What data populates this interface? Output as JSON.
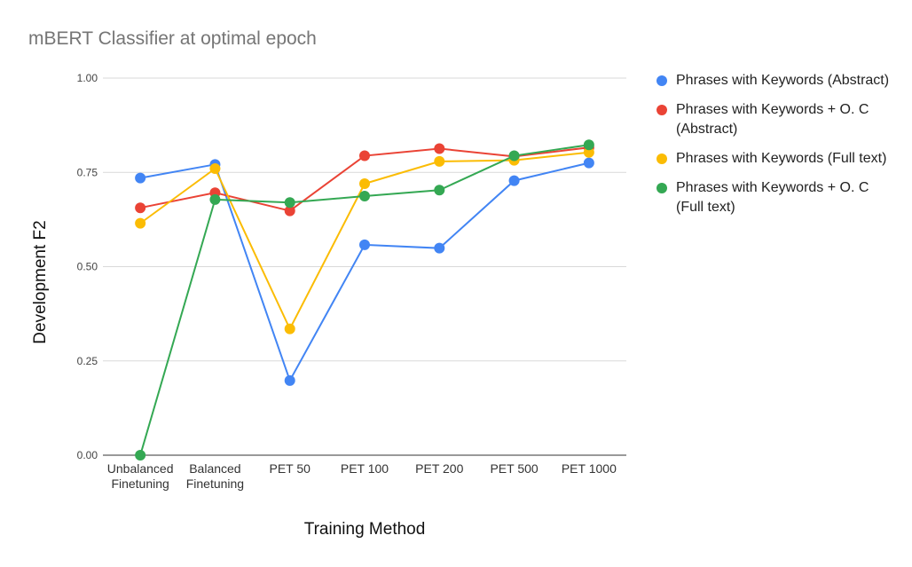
{
  "chart_data": {
    "type": "line",
    "title": "mBERT Classifier at optimal epoch",
    "xlabel": "Training Method",
    "ylabel": "Development F2",
    "categories": [
      "Unbalanced Finetuning",
      "Balanced Finetuning",
      "PET 50",
      "PET 100",
      "PET 200",
      "PET 500",
      "PET 1000"
    ],
    "category_lines": [
      [
        "Unbalanced",
        "Finetuning"
      ],
      [
        "Balanced",
        "Finetuning"
      ],
      [
        "PET 50"
      ],
      [
        "PET 100"
      ],
      [
        "PET 200"
      ],
      [
        "PET 500"
      ],
      [
        "PET 1000"
      ]
    ],
    "ylim": [
      0,
      1
    ],
    "yticks": [
      0,
      0.25,
      0.5,
      0.75,
      1
    ],
    "ytick_labels": [
      "0.00",
      "0.25",
      "0.50",
      "0.75",
      "1.00"
    ],
    "grid": true,
    "legend_position": "right",
    "series": [
      {
        "name": "Phrases with Keywords (Abstract)",
        "color": "#4285F4",
        "values": [
          0.735,
          0.771,
          0.198,
          0.558,
          0.549,
          0.728,
          0.775
        ]
      },
      {
        "name": "Phrases with Keywords + O. C (Abstract)",
        "color": "#EA4335",
        "values": [
          0.656,
          0.696,
          0.648,
          0.794,
          0.813,
          0.792,
          0.816
        ]
      },
      {
        "name": "Phrases with Keywords (Full text)",
        "color": "#FBBC04",
        "values": [
          0.615,
          0.76,
          0.335,
          0.72,
          0.779,
          0.782,
          0.803
        ]
      },
      {
        "name": "Phrases with Keywords + O. C (Full text)",
        "color": "#34A853",
        "values": [
          0.0,
          0.678,
          0.67,
          0.687,
          0.703,
          0.794,
          0.823
        ]
      }
    ]
  }
}
